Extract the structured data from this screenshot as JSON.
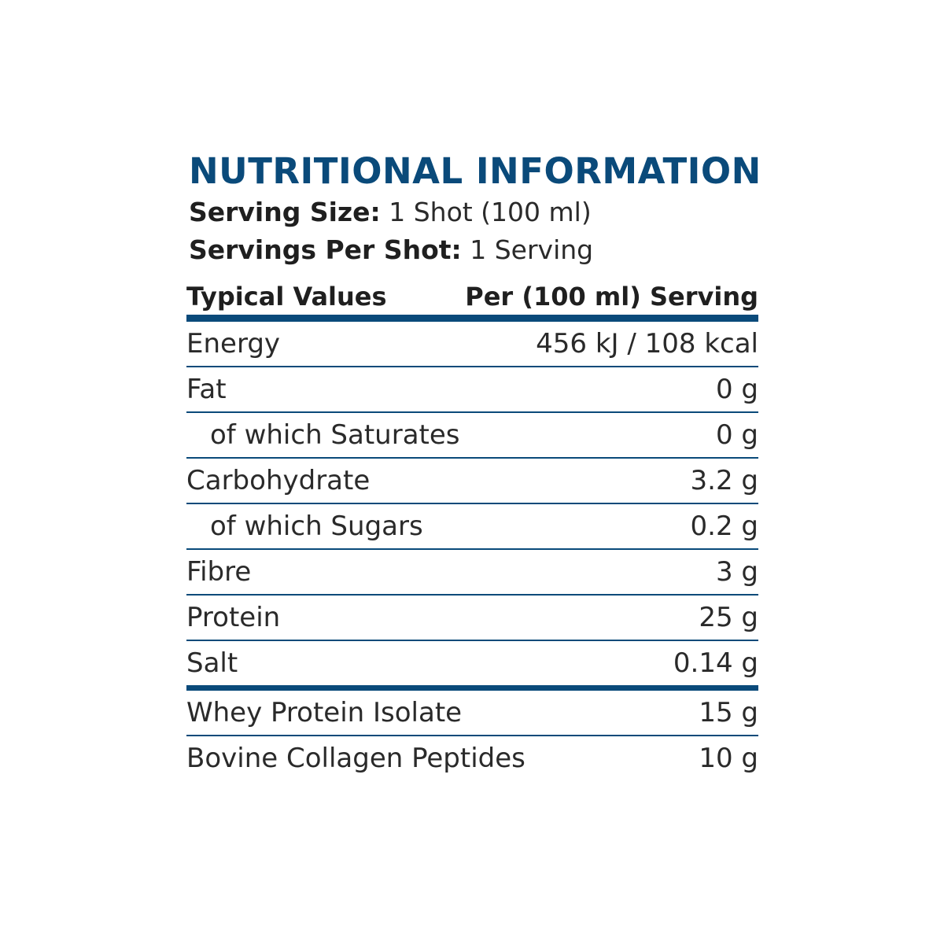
{
  "title": "NUTRITIONAL INFORMATION",
  "serving_size": {
    "label": "Serving Size:",
    "value": "1 Shot (100 ml)"
  },
  "servings_per": {
    "label": "Servings Per Shot:",
    "value": "1 Serving"
  },
  "table": {
    "header": {
      "col1": "Typical Values",
      "col2": "Per (100 ml) Serving"
    },
    "rows": [
      {
        "name": "Energy",
        "value": "456 kJ / 108 kcal"
      },
      {
        "name": "Fat",
        "value": "0 g"
      },
      {
        "name": "of which Saturates",
        "value": "0 g"
      },
      {
        "name": "Carbohydrate",
        "value": "3.2 g"
      },
      {
        "name": "of which Sugars",
        "value": "0.2 g"
      },
      {
        "name": "Fibre",
        "value": "3 g"
      },
      {
        "name": "Protein",
        "value": "25 g"
      },
      {
        "name": "Salt",
        "value": "0.14 g"
      },
      {
        "name": "Whey Protein Isolate",
        "value": "15 g"
      },
      {
        "name": "Bovine Collagen Peptides",
        "value": "10 g"
      }
    ]
  },
  "colors": {
    "accent": "#0a4a7a",
    "text": "#2a2a2a"
  }
}
